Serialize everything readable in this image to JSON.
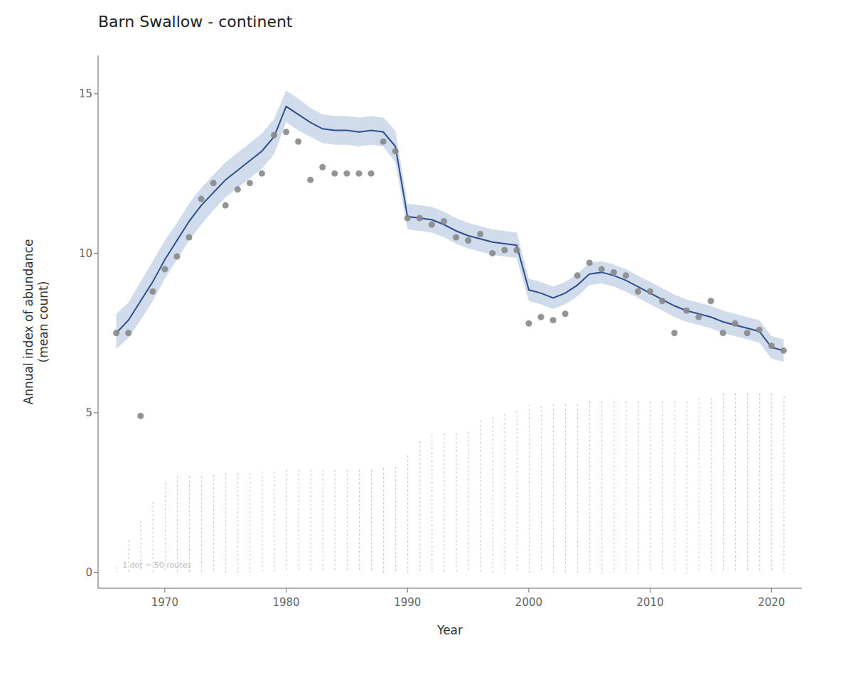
{
  "chart_data": {
    "type": "line",
    "title": "Barn Swallow - continent",
    "x_label": "Year",
    "y_label": "Annual index of abundance\n(mean count)",
    "x": [
      1966,
      1967,
      1968,
      1969,
      1970,
      1971,
      1972,
      1973,
      1974,
      1975,
      1976,
      1977,
      1978,
      1979,
      1980,
      1981,
      1982,
      1983,
      1984,
      1985,
      1986,
      1987,
      1988,
      1989,
      1990,
      1991,
      1992,
      1993,
      1994,
      1995,
      1996,
      1997,
      1998,
      1999,
      2000,
      2001,
      2002,
      2003,
      2004,
      2005,
      2006,
      2007,
      2008,
      2009,
      2010,
      2011,
      2012,
      2013,
      2014,
      2015,
      2016,
      2017,
      2018,
      2019,
      2020,
      2021
    ],
    "series": [
      {
        "type": "bar",
        "line_style": "dotted",
        "color": "#cccccc",
        "values": [
          0.15,
          1.0,
          1.6,
          2.2,
          2.8,
          3.0,
          3.0,
          3.0,
          3.05,
          3.1,
          3.1,
          3.1,
          3.15,
          3.15,
          3.2,
          3.2,
          3.2,
          3.2,
          3.2,
          3.2,
          3.2,
          3.2,
          3.25,
          3.3,
          3.65,
          4.1,
          4.3,
          4.35,
          4.35,
          4.4,
          4.75,
          4.85,
          4.95,
          5.05,
          5.25,
          5.2,
          5.25,
          5.25,
          5.25,
          5.35,
          5.35,
          5.35,
          5.35,
          5.35,
          5.35,
          5.35,
          5.35,
          5.35,
          5.45,
          5.45,
          5.6,
          5.6,
          5.6,
          5.6,
          5.6,
          5.5
        ]
      },
      {
        "type": "area",
        "color": "#8aa4cc",
        "lower": [
          7.0,
          7.35,
          7.9,
          8.5,
          9.2,
          9.8,
          10.4,
          10.9,
          11.35,
          11.75,
          12.05,
          12.35,
          12.65,
          13.1,
          14.1,
          13.85,
          13.65,
          13.45,
          13.4,
          13.4,
          13.35,
          13.4,
          13.35,
          12.85,
          10.75,
          10.7,
          10.65,
          10.5,
          10.3,
          10.15,
          10.05,
          9.95,
          9.9,
          9.85,
          8.5,
          8.4,
          8.25,
          8.4,
          8.65,
          9.0,
          9.05,
          8.95,
          8.8,
          8.6,
          8.4,
          8.2,
          8.0,
          7.85,
          7.75,
          7.65,
          7.5,
          7.4,
          7.3,
          7.2,
          6.7,
          6.6
        ],
        "upper": [
          8.1,
          8.45,
          9.1,
          9.75,
          10.4,
          10.95,
          11.55,
          12.05,
          12.45,
          12.85,
          13.15,
          13.45,
          13.75,
          14.2,
          15.1,
          14.85,
          14.55,
          14.35,
          14.3,
          14.3,
          14.25,
          14.3,
          14.25,
          13.85,
          11.55,
          11.5,
          11.45,
          11.3,
          11.1,
          10.95,
          10.85,
          10.75,
          10.7,
          10.65,
          9.2,
          9.1,
          8.95,
          9.1,
          9.35,
          9.7,
          9.75,
          9.65,
          9.5,
          9.3,
          9.1,
          8.9,
          8.7,
          8.55,
          8.45,
          8.35,
          8.2,
          8.1,
          8.0,
          7.9,
          7.4,
          7.3
        ]
      },
      {
        "type": "line",
        "color": "#2e4e8e",
        "values": [
          7.5,
          7.9,
          8.5,
          9.1,
          9.8,
          10.4,
          11.0,
          11.5,
          11.9,
          12.3,
          12.6,
          12.9,
          13.2,
          13.65,
          14.6,
          14.35,
          14.1,
          13.9,
          13.85,
          13.85,
          13.8,
          13.85,
          13.8,
          13.35,
          11.15,
          11.1,
          11.05,
          10.9,
          10.7,
          10.55,
          10.45,
          10.35,
          10.3,
          10.25,
          8.85,
          8.75,
          8.6,
          8.75,
          9.0,
          9.35,
          9.4,
          9.3,
          9.15,
          8.95,
          8.75,
          8.55,
          8.35,
          8.2,
          8.1,
          8.0,
          7.85,
          7.75,
          7.65,
          7.55,
          7.05,
          6.95
        ]
      },
      {
        "type": "scatter",
        "color": "#888888",
        "values": [
          7.5,
          7.5,
          4.9,
          8.8,
          9.5,
          9.9,
          10.5,
          11.7,
          12.2,
          11.5,
          12.0,
          12.2,
          12.5,
          13.7,
          13.8,
          13.5,
          12.3,
          12.7,
          12.5,
          12.5,
          12.5,
          12.5,
          13.5,
          13.2,
          11.1,
          11.1,
          10.9,
          11.0,
          10.5,
          10.4,
          10.6,
          10.0,
          10.1,
          10.1,
          7.8,
          8.0,
          7.9,
          8.1,
          9.3,
          9.7,
          9.5,
          9.4,
          9.3,
          8.8,
          8.8,
          8.5,
          7.5,
          8.2,
          8.0,
          8.5,
          7.5,
          7.8,
          7.5,
          7.6,
          7.1,
          6.95
        ]
      }
    ],
    "annotations": [
      {
        "text": "1 dot ~ 50 routes",
        "x": 1966.5,
        "y": 0.1,
        "color": "#bbbbbb"
      }
    ],
    "xlim": [
      1964.5,
      2022.5
    ],
    "ylim": [
      -0.5,
      16.2
    ],
    "xticks": [
      1970,
      1980,
      1990,
      2000,
      2010,
      2020
    ],
    "yticks": [
      0,
      5,
      10,
      15
    ],
    "grid": false
  }
}
